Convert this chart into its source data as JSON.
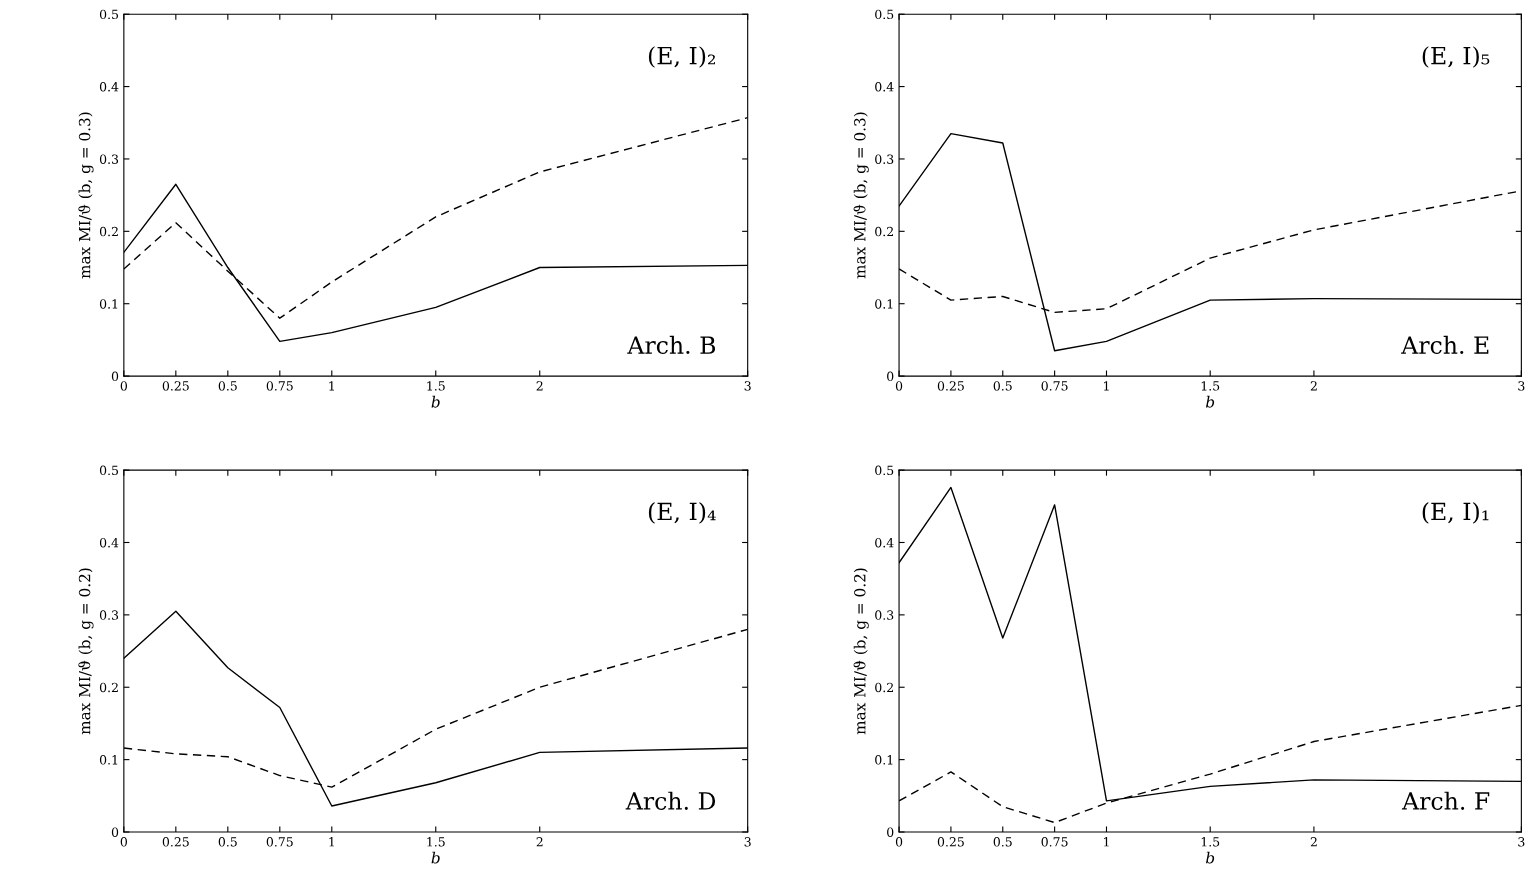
{
  "chart_data": [
    {
      "type": "line",
      "xlabel": "b",
      "ylabel": "max MI/ϑ (b, g = 0.3)",
      "annotations": [
        "(E, I)₂",
        "Arch. B"
      ],
      "x": [
        0,
        0.25,
        0.5,
        0.75,
        1,
        1.5,
        2,
        3
      ],
      "xlim": [
        0,
        3
      ],
      "xticks": [
        0,
        0.25,
        0.5,
        0.75,
        1,
        1.5,
        2,
        3
      ],
      "ylim": [
        0,
        0.5
      ],
      "yticks": [
        0,
        0.1,
        0.2,
        0.3,
        0.4,
        0.5
      ],
      "grid": false,
      "legend": false,
      "series": [
        {
          "color": "#000000",
          "line_style": "solid",
          "values": [
            0.171,
            0.265,
            0.15,
            0.048,
            0.06,
            0.095,
            0.15,
            0.153
          ]
        },
        {
          "color": "#000000",
          "line_style": "dashed",
          "values": [
            0.148,
            0.212,
            0.145,
            0.08,
            0.13,
            0.22,
            0.282,
            0.357
          ]
        }
      ]
    },
    {
      "type": "line",
      "xlabel": "b",
      "ylabel": "max MI/ϑ (b, g = 0.3)",
      "annotations": [
        "(E, I)₅",
        "Arch. E"
      ],
      "x": [
        0,
        0.25,
        0.5,
        0.75,
        1,
        1.5,
        2,
        3
      ],
      "xlim": [
        0,
        3
      ],
      "xticks": [
        0,
        0.25,
        0.5,
        0.75,
        1,
        1.5,
        2,
        3
      ],
      "ylim": [
        0,
        0.5
      ],
      "yticks": [
        0,
        0.1,
        0.2,
        0.3,
        0.4,
        0.5
      ],
      "grid": false,
      "legend": false,
      "series": [
        {
          "color": "#000000",
          "line_style": "solid",
          "values": [
            0.235,
            0.335,
            0.322,
            0.035,
            0.048,
            0.105,
            0.107,
            0.106
          ]
        },
        {
          "color": "#000000",
          "line_style": "dashed",
          "values": [
            0.148,
            0.105,
            0.11,
            0.088,
            0.093,
            0.163,
            0.202,
            0.256
          ]
        }
      ]
    },
    {
      "type": "line",
      "xlabel": "b",
      "ylabel": "max MI/ϑ (b, g = 0.2)",
      "annotations": [
        "(E, I)₄",
        "Arch. D"
      ],
      "x": [
        0,
        0.25,
        0.5,
        0.75,
        1,
        1.5,
        2,
        3
      ],
      "xlim": [
        0,
        3
      ],
      "xticks": [
        0,
        0.25,
        0.5,
        0.75,
        1,
        1.5,
        2,
        3
      ],
      "ylim": [
        0,
        0.5
      ],
      "yticks": [
        0,
        0.1,
        0.2,
        0.3,
        0.4,
        0.5
      ],
      "grid": false,
      "legend": false,
      "series": [
        {
          "color": "#000000",
          "line_style": "solid",
          "values": [
            0.24,
            0.305,
            0.227,
            0.172,
            0.036,
            0.068,
            0.11,
            0.116
          ]
        },
        {
          "color": "#000000",
          "line_style": "dashed",
          "values": [
            0.116,
            0.108,
            0.104,
            0.078,
            0.062,
            0.142,
            0.2,
            0.28
          ]
        }
      ]
    },
    {
      "type": "line",
      "xlabel": "b",
      "ylabel": "max MI/ϑ (b, g = 0.2)",
      "annotations": [
        "(E, I)₁",
        "Arch. F"
      ],
      "x": [
        0,
        0.25,
        0.5,
        0.75,
        1,
        1.5,
        2,
        3
      ],
      "xlim": [
        0,
        3
      ],
      "xticks": [
        0,
        0.25,
        0.5,
        0.75,
        1,
        1.5,
        2,
        3
      ],
      "ylim": [
        0,
        0.5
      ],
      "yticks": [
        0,
        0.1,
        0.2,
        0.3,
        0.4,
        0.5
      ],
      "grid": false,
      "legend": false,
      "series": [
        {
          "color": "#000000",
          "line_style": "solid",
          "values": [
            0.372,
            0.476,
            0.268,
            0.452,
            0.043,
            0.063,
            0.072,
            0.07
          ]
        },
        {
          "color": "#000000",
          "line_style": "dashed",
          "values": [
            0.043,
            0.083,
            0.035,
            0.013,
            0.04,
            0.08,
            0.125,
            0.175
          ]
        }
      ]
    }
  ]
}
